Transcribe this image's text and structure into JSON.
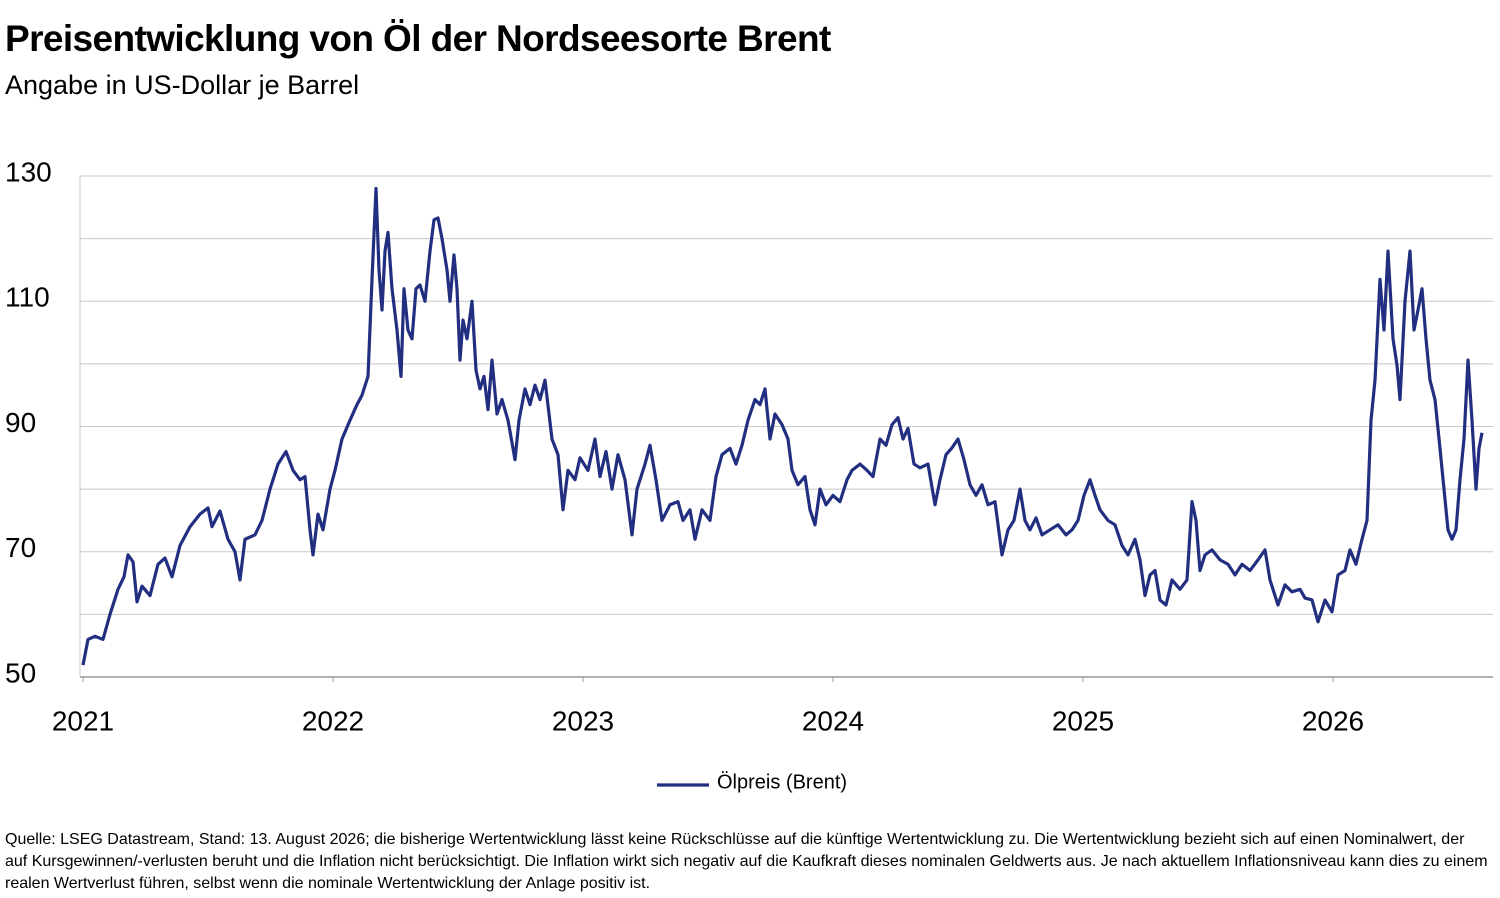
{
  "chart_data": {
    "type": "line",
    "title": "Preisentwicklung von Öl der Nordseesorte Brent",
    "subtitle": "Angabe in US-Dollar je Barrel",
    "source": "Quelle: LSEG Datastream, Stand: 13. August 2026; die bisherige Wertentwicklung lässt keine Rückschlüsse auf die künftige Wertentwicklung zu. Die Wertentwicklung bezieht sich auf einen Nominalwert, der auf Kursgewinnen/-verlusten beruht und die Inflation nicht berücksichtigt. Die Inflation wirkt sich negativ auf die Kaufkraft dieses nominalen Geldwerts aus. Je nach aktuellem Inflationsniveau kann dies zu einem realen Wertverlust führen, selbst wenn die nominale Wertentwicklung der Anlage positiv ist.",
    "x": [
      2021.0,
      2021.02,
      2021.048,
      2021.08,
      2021.108,
      2021.14,
      2021.164,
      2021.18,
      2021.2,
      2021.216,
      2021.236,
      2021.268,
      2021.3,
      2021.328,
      2021.356,
      2021.388,
      2021.428,
      2021.468,
      2021.5,
      2021.516,
      2021.548,
      2021.58,
      2021.608,
      2021.628,
      2021.648,
      2021.688,
      2021.716,
      2021.748,
      2021.78,
      2021.812,
      2021.84,
      2021.868,
      2021.888,
      2021.908,
      2021.92,
      2021.94,
      2021.96,
      2021.988,
      2022.008,
      2022.036,
      2022.068,
      2022.096,
      2022.116,
      2022.14,
      2022.156,
      2022.172,
      2022.184,
      2022.196,
      2022.208,
      2022.22,
      2022.236,
      2022.256,
      2022.272,
      2022.284,
      2022.3,
      2022.316,
      2022.332,
      2022.348,
      2022.368,
      2022.388,
      2022.404,
      2022.42,
      2022.436,
      2022.456,
      2022.468,
      2022.484,
      2022.496,
      2022.508,
      2022.52,
      2022.536,
      2022.556,
      2022.572,
      2022.588,
      2022.604,
      2022.62,
      2022.636,
      2022.656,
      2022.676,
      2022.7,
      2022.728,
      2022.744,
      2022.768,
      2022.788,
      2022.808,
      2022.828,
      2022.848,
      2022.876,
      2022.9,
      2022.92,
      2022.94,
      2022.968,
      2022.988,
      2023.02,
      2023.048,
      2023.068,
      2023.092,
      2023.116,
      2023.14,
      2023.168,
      2023.196,
      2023.216,
      2023.248,
      2023.268,
      2023.292,
      2023.316,
      2023.348,
      2023.38,
      2023.4,
      2023.428,
      2023.448,
      2023.476,
      2023.508,
      2023.532,
      2023.556,
      2023.588,
      2023.612,
      2023.636,
      2023.66,
      2023.688,
      2023.708,
      2023.728,
      2023.748,
      2023.768,
      2023.796,
      2023.82,
      2023.836,
      2023.86,
      2023.888,
      2023.908,
      2023.928,
      2023.948,
      2023.972,
      2024.0,
      2024.028,
      2024.056,
      2024.076,
      2024.108,
      2024.136,
      2024.16,
      2024.188,
      2024.212,
      2024.236,
      2024.26,
      2024.28,
      2024.3,
      2024.324,
      2024.348,
      2024.38,
      2024.408,
      2024.428,
      2024.452,
      2024.476,
      2024.5,
      2024.524,
      2024.548,
      2024.572,
      2024.596,
      2024.62,
      2024.648,
      2024.676,
      2024.7,
      2024.724,
      2024.748,
      2024.768,
      2024.788,
      2024.812,
      2024.836,
      2024.868,
      2024.9,
      2024.932,
      2024.956,
      2024.98,
      2025.004,
      2025.028,
      2025.048,
      2025.068,
      2025.1,
      2025.128,
      2025.156,
      2025.18,
      2025.208,
      2025.228,
      2025.248,
      2025.268,
      2025.288,
      2025.308,
      2025.332,
      2025.356,
      2025.388,
      2025.416,
      2025.436,
      2025.452,
      2025.468,
      2025.488,
      2025.516,
      2025.548,
      2025.58,
      2025.608,
      2025.636,
      2025.668,
      2025.7,
      2025.728,
      2025.748,
      2025.78,
      2025.808,
      2025.836,
      2025.868,
      2025.888,
      2025.916,
      2025.94,
      2025.968,
      2025.996,
      2026.02,
      2026.048,
      2026.068,
      2026.092,
      2026.116,
      2026.136,
      2026.152,
      2026.168,
      2026.188,
      2026.204,
      2026.22,
      2026.24,
      2026.256,
      2026.268,
      2026.288,
      2026.308,
      2026.324,
      2026.34,
      2026.356,
      2026.372,
      2026.388,
      2026.408,
      2026.428,
      2026.444,
      2026.46,
      2026.476,
      2026.492,
      2026.508,
      2026.524,
      2026.54,
      2026.556,
      2026.572,
      2026.584,
      2026.596
    ],
    "series": [
      {
        "name": "Ölpreis (Brent)",
        "color": "#222f80",
        "values": [
          51.9,
          56,
          56.5,
          56,
          60,
          64,
          66,
          69.5,
          68.4,
          62,
          64.5,
          63,
          68,
          69,
          66,
          71,
          74,
          76,
          77,
          74,
          76.5,
          72,
          70,
          65.5,
          72,
          72.7,
          75,
          80,
          84,
          86,
          83,
          81.5,
          82,
          73.5,
          69.5,
          76,
          73.5,
          80,
          83,
          88,
          91,
          93.5,
          95,
          98,
          113.5,
          128,
          115,
          108.6,
          118,
          121,
          112,
          105.4,
          98,
          112,
          105.4,
          104,
          112,
          112.6,
          110,
          118,
          123,
          123.3,
          120,
          115,
          110,
          117.4,
          112,
          100.6,
          107,
          104,
          110,
          99,
          96,
          98,
          92.7,
          100.6,
          92,
          94.3,
          91,
          84.7,
          91,
          96,
          93.5,
          96.6,
          94.3,
          97.4,
          88,
          85.5,
          76.7,
          83,
          81.5,
          85,
          83,
          88,
          82,
          86,
          80,
          85.5,
          81.5,
          72.7,
          80,
          84,
          87,
          81.5,
          75,
          77.5,
          78,
          75,
          76.7,
          72,
          76.7,
          75,
          82,
          85.5,
          86.5,
          84,
          87,
          91,
          94.3,
          93.5,
          96,
          88,
          92,
          90.3,
          88,
          83,
          80.7,
          82,
          76.7,
          74.3,
          80,
          77.5,
          79,
          78,
          81.5,
          83,
          84,
          83,
          82,
          88,
          87,
          90.3,
          91.4,
          88,
          89.7,
          84,
          83.4,
          84,
          77.5,
          81.5,
          85.5,
          86.6,
          88,
          84.7,
          80.7,
          79,
          80.7,
          77.5,
          78,
          69.5,
          73.5,
          75,
          80,
          75,
          73.5,
          75.4,
          72.7,
          73.5,
          74.3,
          72.7,
          73.5,
          75,
          79,
          81.5,
          79,
          76.7,
          75,
          74.3,
          71,
          69.5,
          72,
          68.7,
          63,
          66.3,
          67,
          62.3,
          61.5,
          65.5,
          64,
          65.5,
          78,
          75,
          67,
          69.5,
          70.3,
          68.7,
          68,
          66.3,
          68,
          67,
          68.7,
          70.3,
          65.5,
          61.5,
          64.7,
          63.6,
          64,
          62.6,
          62.3,
          58.8,
          62.3,
          60.4,
          66.3,
          67,
          70.3,
          68,
          72,
          75,
          91,
          97.4,
          113.5,
          105.4,
          118,
          104,
          99.8,
          94.3,
          110,
          118,
          105.4,
          108.6,
          112,
          104,
          97.4,
          94.3,
          86.5,
          80,
          73.5,
          72,
          73.5,
          81.5,
          88,
          100.6,
          91,
          80,
          86.5,
          89
        ]
      }
    ],
    "xlim": [
      2021,
      2026.64
    ],
    "xticks": [
      2021,
      2022,
      2023,
      2024,
      2025,
      2026
    ],
    "ylim": [
      50,
      130
    ],
    "yticks": [
      50,
      70,
      90,
      110,
      130
    ],
    "minor_yticks": [
      60,
      80,
      100,
      120
    ],
    "grid": true,
    "legend": "bottom"
  }
}
